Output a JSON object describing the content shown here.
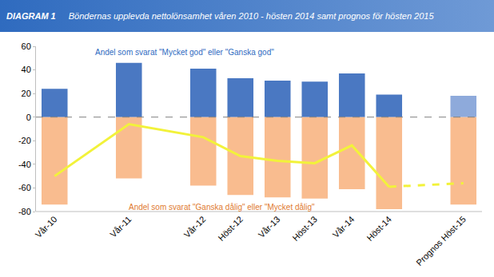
{
  "chart_data": {
    "type": "bar",
    "title": "DIAGRAM 1",
    "subtitle": "Böndernas upplevda nettolönsamhet våren 2010 - hösten 2014 samt prognos för hösten 2015",
    "stacked": true,
    "grid": false,
    "categories": [
      "Vår-10",
      null,
      "Vår-11",
      null,
      "Vår-12",
      "Höst-12",
      "Vår-13",
      "Höst-13",
      "Vår-14",
      "Höst-14",
      null,
      "Prognos Höst-15"
    ],
    "series": [
      {
        "name": "Andel som svarat \"Mycket god\" eller \"Ganska god\"",
        "colors": [
          "#4a78c2",
          null,
          "#4a78c2",
          null,
          "#4a78c2",
          "#4a78c2",
          "#4a78c2",
          "#4a78c2",
          "#4a78c2",
          "#4a78c2",
          null,
          "#8eaadb"
        ],
        "values": [
          24,
          null,
          46,
          null,
          41,
          33,
          31,
          30,
          37,
          19,
          null,
          18
        ]
      },
      {
        "name": "Andel som svarat \"Ganska dålig\" eller \"Mycket dålig\"",
        "color": "#f9bc8f",
        "values": [
          -74,
          null,
          -52,
          null,
          -58,
          -66,
          -68,
          -69,
          -61,
          -78,
          null,
          -74
        ]
      },
      {
        "type": "line",
        "color": "#f2f23a",
        "values": [
          -50,
          null,
          -6,
          null,
          -17,
          -33,
          -37,
          -39,
          -24,
          -59,
          null,
          -56
        ]
      }
    ],
    "ylim": [
      -80,
      60
    ],
    "yticks": [
      -80,
      -60,
      -40,
      -20,
      0,
      20,
      40,
      60
    ]
  }
}
